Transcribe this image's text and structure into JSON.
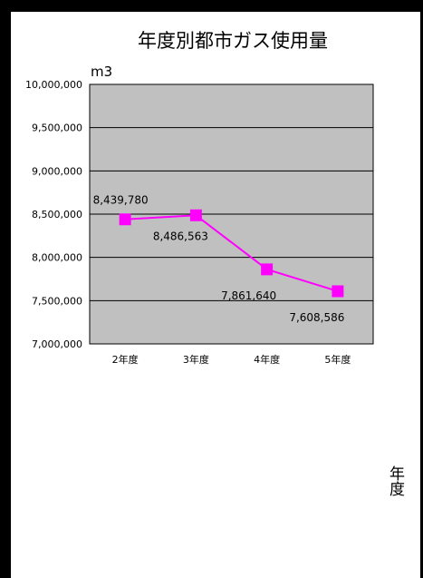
{
  "chart_data": {
    "type": "line",
    "title": "年度別都市ガス使用量",
    "ylabel": "m3",
    "xlabel": "年度",
    "categories": [
      "2年度",
      "3年度",
      "4年度",
      "5年度"
    ],
    "series": [
      {
        "values": [
          8439780,
          8486563,
          7861640,
          7608586
        ],
        "data_labels": [
          "8,439,780",
          "8,486,563",
          "7,861,640",
          "7,608,586"
        ]
      }
    ],
    "ylim": [
      7000000,
      10000000
    ],
    "yticks": [
      7000000,
      7500000,
      8000000,
      8500000,
      9000000,
      9500000,
      10000000
    ],
    "ytick_labels": [
      "7,000,000",
      "7,500,000",
      "8,000,000",
      "8,500,000",
      "9,000,000",
      "9,500,000",
      "10,000,000"
    ],
    "grid": true,
    "colors": {
      "plot_background": "#c0c0c0",
      "line": "#ff00ff",
      "marker": "#ff00ff",
      "gridline": "#000000",
      "chart_background": "#ffffff",
      "outer_background": "#000000"
    }
  }
}
